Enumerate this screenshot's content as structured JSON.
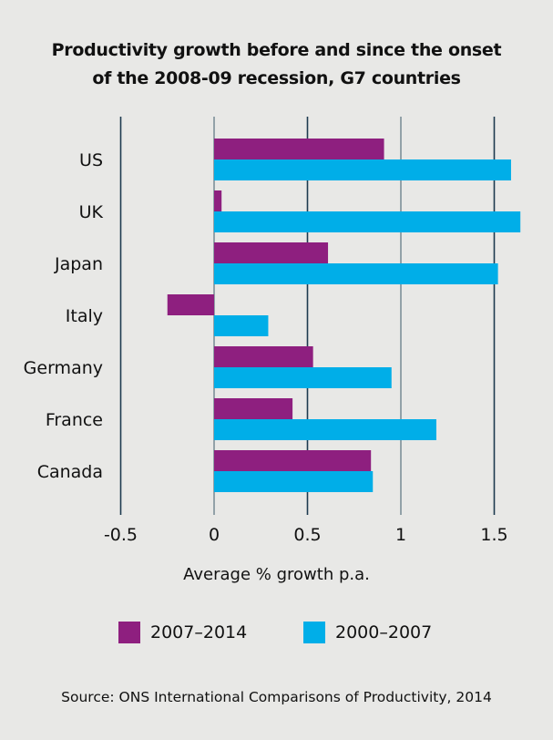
{
  "chart_data": {
    "type": "bar",
    "orientation": "horizontal",
    "title": "Productivity growth before and since the onset of the 2008-09 recession, G7 countries",
    "title_lines": [
      "Productivity growth before and since the onset",
      "of the 2008-09 recession, G7 countries"
    ],
    "xlabel": "Average % growth p.a.",
    "ylabel": "",
    "xlim": [
      -0.5,
      1.65
    ],
    "xticks": [
      -0.5,
      0,
      0.5,
      1,
      1.5
    ],
    "xtick_labels": [
      "-0.5",
      "0",
      "0.5",
      "1",
      "1.5"
    ],
    "grid": true,
    "categories": [
      "US",
      "UK",
      "Japan",
      "Italy",
      "Germany",
      "France",
      "Canada"
    ],
    "series": [
      {
        "name": "2007–2014",
        "color": "#8e1f7f",
        "values": [
          0.91,
          0.04,
          0.61,
          -0.25,
          0.53,
          0.42,
          0.84
        ]
      },
      {
        "name": "2000–2007",
        "color": "#00aee8",
        "values": [
          1.59,
          1.64,
          1.52,
          0.29,
          0.95,
          1.19,
          0.85
        ]
      }
    ],
    "legend": "bottom",
    "source": "Source: ONS International Comparisons of Productivity, 2014"
  }
}
